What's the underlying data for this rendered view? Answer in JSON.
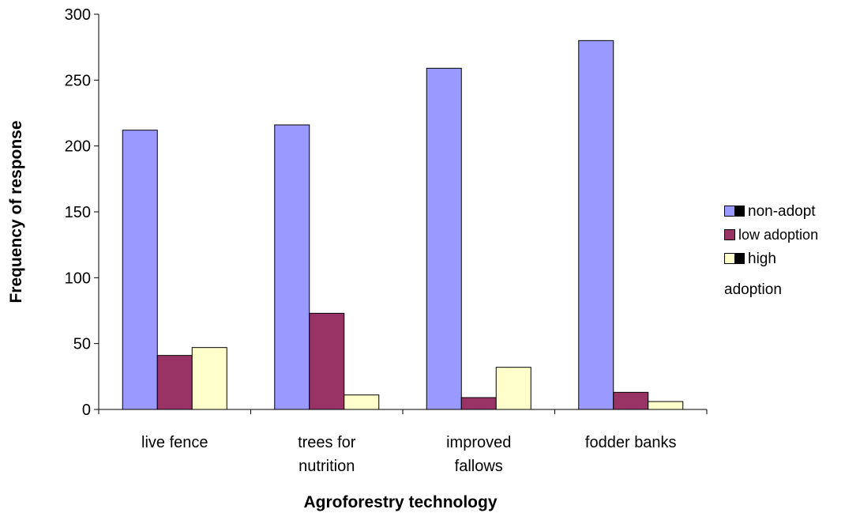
{
  "chart_data": {
    "type": "bar",
    "categories": [
      "live fence",
      "trees for nutrition",
      "improved fallows",
      "fodder banks"
    ],
    "category_lines": [
      [
        "live fence"
      ],
      [
        "trees for",
        "nutrition"
      ],
      [
        "improved",
        "fallows"
      ],
      [
        "fodder banks"
      ]
    ],
    "series": [
      {
        "name": "non-adopt",
        "values": [
          212,
          216,
          259,
          280
        ],
        "color": "#9999FF"
      },
      {
        "name": "low adoption",
        "values": [
          41,
          73,
          9,
          13
        ],
        "color": "#993366"
      },
      {
        "name": "high adoption",
        "values": [
          47,
          11,
          32,
          6
        ],
        "color": "#FFFFCC"
      }
    ],
    "xlabel": "Agroforestry technology",
    "ylabel": "Frequency of response",
    "ylim": [
      0,
      300
    ],
    "yticks": [
      0,
      50,
      100,
      150,
      200,
      250,
      300
    ],
    "grid": false,
    "legend_position": "right"
  },
  "legend": {
    "items": [
      "non-adopt",
      "low adoption",
      "high"
    ],
    "wrap_text": "adoption"
  }
}
